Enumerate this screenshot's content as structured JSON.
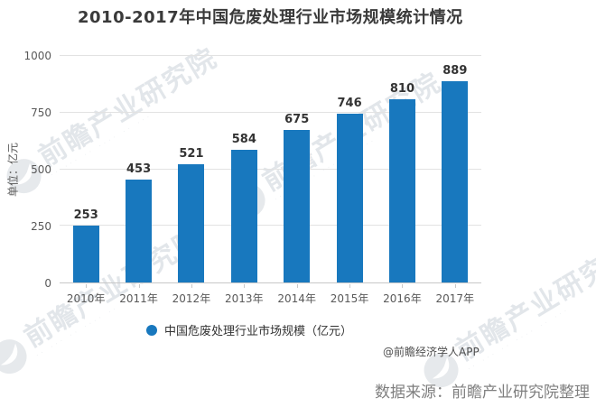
{
  "chart_data": {
    "type": "bar",
    "title": "2010-2017年中国危废处理行业市场规模统计情况",
    "categories": [
      "2010年",
      "2011年",
      "2012年",
      "2013年",
      "2014年",
      "2015年",
      "2016年",
      "2017年"
    ],
    "series": [
      {
        "name": "中国危废处理行业市场规模（亿元）",
        "values": [
          253,
          453,
          521,
          584,
          675,
          746,
          810,
          889
        ]
      }
    ],
    "xlabel": "",
    "ylabel": "单位：亿元",
    "ylim": [
      0,
      1000
    ],
    "yticks": [
      0,
      250,
      500,
      750,
      1000
    ],
    "grid": true,
    "legend_position": "bottom"
  },
  "legend": {
    "label": "中国危废处理行业市场规模（亿元）"
  },
  "footer": {
    "credit": "@前瞻经济学人APP",
    "source": "数据来源：前瞻产业研究院整理"
  },
  "watermark": {
    "text": "前瞻产业研究院",
    "subtext": "·· ··· ·· ···· ·· ···",
    "logo": "swoosh-circle-icon"
  },
  "colors": {
    "bar": "#1878be",
    "title_text": "#3a3a3a",
    "value_label": "#333333",
    "axis_text": "#595959",
    "grid_line": "#e2e2e2",
    "axis_line": "#c8c8c8",
    "credit_text": "#4d4d4d",
    "source_text": "#7f7f7f",
    "watermark": "#ccd3da"
  }
}
